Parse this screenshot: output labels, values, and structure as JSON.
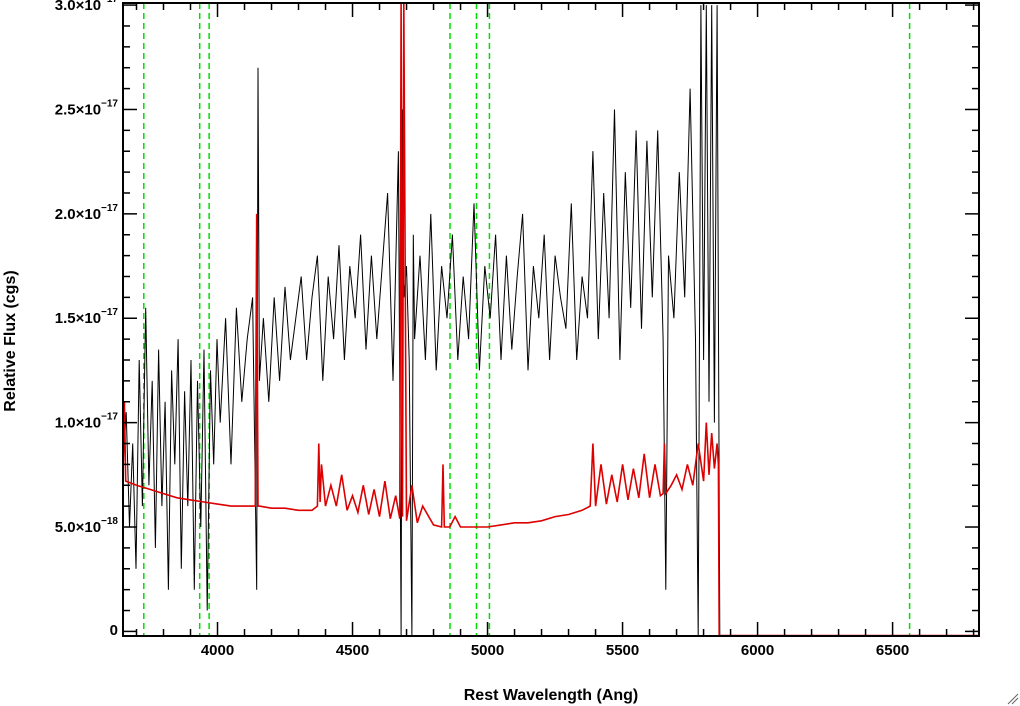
{
  "chart_data": {
    "type": "line",
    "title": "",
    "xlabel": "Rest Wavelength (Ang)",
    "ylabel": "Relative Flux (cgs)",
    "xlim": [
      3650,
      6820
    ],
    "ylim": [
      -2.2e-19,
      3.01e-17
    ],
    "x_ticks": [
      {
        "value": 4000,
        "label": "4000"
      },
      {
        "value": 4500,
        "label": "4500"
      },
      {
        "value": 5000,
        "label": "5000"
      },
      {
        "value": 5500,
        "label": "5500"
      },
      {
        "value": 6000,
        "label": "6000"
      },
      {
        "value": 6500,
        "label": "6500"
      }
    ],
    "y_ticks": [
      {
        "value": 0,
        "mantissa": "0",
        "exponent": ""
      },
      {
        "value": 5e-18,
        "mantissa": "5.0×10",
        "exponent": "−18"
      },
      {
        "value": 1e-17,
        "mantissa": "1.0×10",
        "exponent": "−17"
      },
      {
        "value": 1.5e-17,
        "mantissa": "1.5×10",
        "exponent": "−17"
      },
      {
        "value": 2e-17,
        "mantissa": "2.0×10",
        "exponent": "−17"
      },
      {
        "value": 2.5e-17,
        "mantissa": "2.5×10",
        "exponent": "−17"
      },
      {
        "value": 3e-17,
        "mantissa": "3.0×10",
        "exponent": "−17"
      }
    ],
    "reference_lines": {
      "color": "#00dd00",
      "style": "dashed",
      "x": [
        3727,
        3934,
        3969,
        4861,
        4959,
        5007,
        6563
      ]
    },
    "series": [
      {
        "color": "#000000",
        "x": [
          3650,
          3662,
          3674,
          3686,
          3698,
          3710,
          3722,
          3734,
          3746,
          3758,
          3770,
          3782,
          3794,
          3806,
          3818,
          3830,
          3842,
          3854,
          3866,
          3878,
          3890,
          3902,
          3914,
          3926,
          3938,
          3950,
          3962,
          3974,
          3986,
          3998,
          4010,
          4030,
          4050,
          4070,
          4090,
          4110,
          4130,
          4145,
          4150,
          4155,
          4170,
          4190,
          4210,
          4230,
          4250,
          4270,
          4290,
          4310,
          4330,
          4350,
          4370,
          4390,
          4410,
          4430,
          4450,
          4470,
          4490,
          4510,
          4530,
          4550,
          4570,
          4590,
          4610,
          4630,
          4650,
          4670,
          4680,
          4685,
          4690,
          4700,
          4710,
          4720,
          4725,
          4730,
          4750,
          4770,
          4790,
          4810,
          4830,
          4850,
          4870,
          4890,
          4910,
          4930,
          4950,
          4970,
          4990,
          5010,
          5030,
          5050,
          5070,
          5090,
          5110,
          5130,
          5150,
          5170,
          5190,
          5210,
          5230,
          5250,
          5270,
          5290,
          5310,
          5330,
          5350,
          5370,
          5390,
          5410,
          5430,
          5450,
          5470,
          5490,
          5510,
          5530,
          5550,
          5570,
          5590,
          5610,
          5630,
          5650,
          5660,
          5670,
          5690,
          5710,
          5730,
          5750,
          5770,
          5780,
          5790,
          5800,
          5810,
          5820,
          5830,
          5840,
          5850,
          5860
        ],
        "y": [
          8e-18,
          1.05e-17,
          5e-18,
          9e-18,
          3e-18,
          1.3e-17,
          6e-18,
          1.55e-17,
          7e-18,
          1.2e-17,
          4e-18,
          1.35e-17,
          6e-18,
          1.1e-17,
          2e-18,
          1.25e-17,
          8e-18,
          1.4e-17,
          3e-18,
          1.15e-17,
          6e-18,
          1.3e-17,
          2e-18,
          1.2e-17,
          5e-18,
          1.35e-17,
          1e-18,
          1.25e-17,
          8e-18,
          1.4e-17,
          1e-17,
          1.5e-17,
          8e-18,
          1.55e-17,
          1.1e-17,
          1.4e-17,
          1.6e-17,
          2e-18,
          2.7e-17,
          1.2e-17,
          1.5e-17,
          1.1e-17,
          1.6e-17,
          1.2e-17,
          1.65e-17,
          1.3e-17,
          1.5e-17,
          1.7e-17,
          1.3e-17,
          1.6e-17,
          1.8e-17,
          1.2e-17,
          1.7e-17,
          1.4e-17,
          1.85e-17,
          1.3e-17,
          1.75e-17,
          1.5e-17,
          1.9e-17,
          1.35e-17,
          1.8e-17,
          1.4e-17,
          1.75e-17,
          2.1e-17,
          1.2e-17,
          2.3e-17,
          -2e-19,
          2.5e-17,
          1.6e-17,
          1.75e-17,
          1.3e-17,
          -2e-19,
          1.9e-17,
          1.4e-17,
          1.8e-17,
          1.3e-17,
          2e-17,
          1.25e-17,
          1.75e-17,
          1.5e-17,
          1.9e-17,
          1.3e-17,
          1.7e-17,
          1.4e-17,
          2.05e-17,
          1.25e-17,
          1.75e-17,
          1.5e-17,
          1.9e-17,
          1.3e-17,
          1.8e-17,
          1.35e-17,
          1.7e-17,
          2e-17,
          1.25e-17,
          1.75e-17,
          1.5e-17,
          1.9e-17,
          1.3e-17,
          1.8e-17,
          1.6e-17,
          1.45e-17,
          2.05e-17,
          1.3e-17,
          1.7e-17,
          1.5e-17,
          2.3e-17,
          1.4e-17,
          2.1e-17,
          1.5e-17,
          2.5e-17,
          1.3e-17,
          2.2e-17,
          1.55e-17,
          2.4e-17,
          1.45e-17,
          2.35e-17,
          1.6e-17,
          2.4e-17,
          1.4e-17,
          2e-18,
          1.8e-17,
          1.5e-17,
          2.2e-17,
          1.6e-17,
          2.6e-17,
          1.4e-17,
          -2e-19,
          3e-17,
          1.3e-17,
          3e-17,
          1.1e-17,
          3e-17,
          1e-17,
          3e-17,
          -2e-19
        ]
      },
      {
        "color": "#dd0000",
        "x": [
          3650,
          3655,
          3660,
          3700,
          3750,
          3800,
          3850,
          3900,
          3950,
          4000,
          4050,
          4100,
          4140,
          4145,
          4150,
          4155,
          4200,
          4250,
          4300,
          4350,
          4370,
          4375,
          4380,
          4385,
          4400,
          4420,
          4440,
          4460,
          4480,
          4500,
          4520,
          4540,
          4560,
          4580,
          4600,
          4620,
          4640,
          4660,
          4675,
          4680,
          4685,
          4690,
          4700,
          4720,
          4740,
          4760,
          4800,
          4830,
          4835,
          4840,
          4860,
          4880,
          4900,
          4950,
          5000,
          5050,
          5100,
          5150,
          5200,
          5250,
          5300,
          5350,
          5380,
          5390,
          5400,
          5420,
          5440,
          5460,
          5480,
          5500,
          5520,
          5540,
          5560,
          5580,
          5600,
          5620,
          5640,
          5650,
          5655,
          5660,
          5680,
          5700,
          5720,
          5740,
          5760,
          5780,
          5800,
          5810,
          5820,
          5830,
          5840,
          5850,
          5855,
          5858,
          5860,
          5900,
          6000,
          6200,
          6400,
          6600,
          6820
        ],
        "y": [
          7.3e-18,
          1.1e-17,
          7.2e-18,
          7e-18,
          6.8e-18,
          6.6e-18,
          6.4e-18,
          6.3e-18,
          6.2e-18,
          6.1e-18,
          6e-18,
          6e-18,
          6e-18,
          2e-17,
          6e-18,
          6e-18,
          5.9e-18,
          5.9e-18,
          5.8e-18,
          5.8e-18,
          6e-18,
          9e-18,
          6.2e-18,
          8e-18,
          6e-18,
          7e-18,
          6e-18,
          7.5e-18,
          5.8e-18,
          6.5e-18,
          5.7e-18,
          7e-18,
          5.6e-18,
          6.8e-18,
          5.5e-18,
          7.2e-18,
          5.4e-18,
          6.5e-18,
          5.4e-18,
          3.01e-17,
          5.5e-18,
          3.01e-17,
          5.3e-18,
          7e-18,
          5.2e-18,
          6e-18,
          5.1e-18,
          5e-18,
          8e-18,
          5e-18,
          5e-18,
          5.5e-18,
          5e-18,
          5e-18,
          5e-18,
          5.1e-18,
          5.2e-18,
          5.2e-18,
          5.3e-18,
          5.5e-18,
          5.6e-18,
          5.8e-18,
          6e-18,
          9e-18,
          6e-18,
          8e-18,
          6.1e-18,
          7.5e-18,
          6.2e-18,
          8e-18,
          6.3e-18,
          7.8e-18,
          6.4e-18,
          8.5e-18,
          6.4e-18,
          8e-18,
          6.5e-18,
          6.6e-18,
          9e-18,
          6.6e-18,
          7e-18,
          7.5e-18,
          6.8e-18,
          8e-18,
          7e-18,
          9e-18,
          7.2e-18,
          1e-17,
          7.5e-18,
          9.5e-18,
          7.8e-18,
          9e-18,
          8e-18,
          -2e-19,
          -2e-19,
          -2e-19,
          -2e-19,
          -2e-19,
          -2e-19,
          -2e-19,
          -2e-19
        ]
      }
    ]
  }
}
